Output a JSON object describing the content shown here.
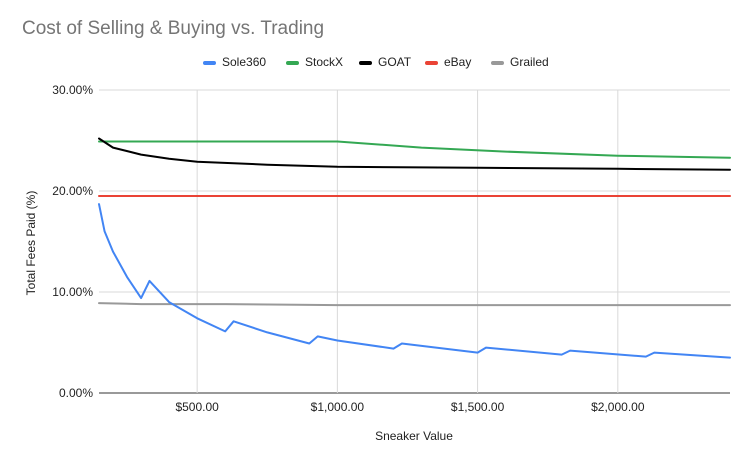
{
  "chart_data": {
    "type": "line",
    "title": "Cost of Selling & Buying vs. Trading",
    "xlabel": "Sneaker Value",
    "ylabel": "Total Fees Paid (%)",
    "xlim": [
      150,
      2400
    ],
    "ylim": [
      0,
      0.3
    ],
    "x_ticks": [
      500,
      1000,
      1500,
      2000
    ],
    "x_tick_labels": [
      "$500.00",
      "$1,000.00",
      "$1,500.00",
      "$2,000.00"
    ],
    "y_ticks": [
      0,
      0.1,
      0.2,
      0.3
    ],
    "y_tick_labels": [
      "0.00%",
      "10.00%",
      "20.00%",
      "30.00%"
    ],
    "grid": true,
    "legend_position": "top",
    "series": [
      {
        "name": "Sole360",
        "color": "#4285f4",
        "x": [
          150,
          170,
          200,
          250,
          300,
          330,
          400,
          500,
          600,
          630,
          750,
          900,
          930,
          1000,
          1200,
          1230,
          1500,
          1530,
          1800,
          1830,
          2100,
          2130,
          2400
        ],
        "y": [
          0.187,
          0.16,
          0.14,
          0.115,
          0.094,
          0.111,
          0.09,
          0.074,
          0.061,
          0.071,
          0.06,
          0.049,
          0.056,
          0.052,
          0.044,
          0.049,
          0.04,
          0.045,
          0.038,
          0.042,
          0.036,
          0.04,
          0.035
        ]
      },
      {
        "name": "StockX",
        "color": "#34a853",
        "x": [
          150,
          500,
          1000,
          1300,
          1600,
          2000,
          2400
        ],
        "y": [
          0.249,
          0.249,
          0.249,
          0.243,
          0.239,
          0.235,
          0.233
        ]
      },
      {
        "name": "GOAT",
        "color": "#000000",
        "x": [
          150,
          200,
          300,
          400,
          500,
          750,
          1000,
          1500,
          2000,
          2400
        ],
        "y": [
          0.252,
          0.243,
          0.236,
          0.232,
          0.229,
          0.226,
          0.224,
          0.223,
          0.222,
          0.221
        ]
      },
      {
        "name": "eBay",
        "color": "#ea4335",
        "x": [
          150,
          2400
        ],
        "y": [
          0.195,
          0.195
        ]
      },
      {
        "name": "Grailed",
        "color": "#999999",
        "x": [
          150,
          300,
          600,
          1000,
          1500,
          2000,
          2400
        ],
        "y": [
          0.089,
          0.088,
          0.088,
          0.087,
          0.087,
          0.087,
          0.087
        ]
      }
    ]
  }
}
